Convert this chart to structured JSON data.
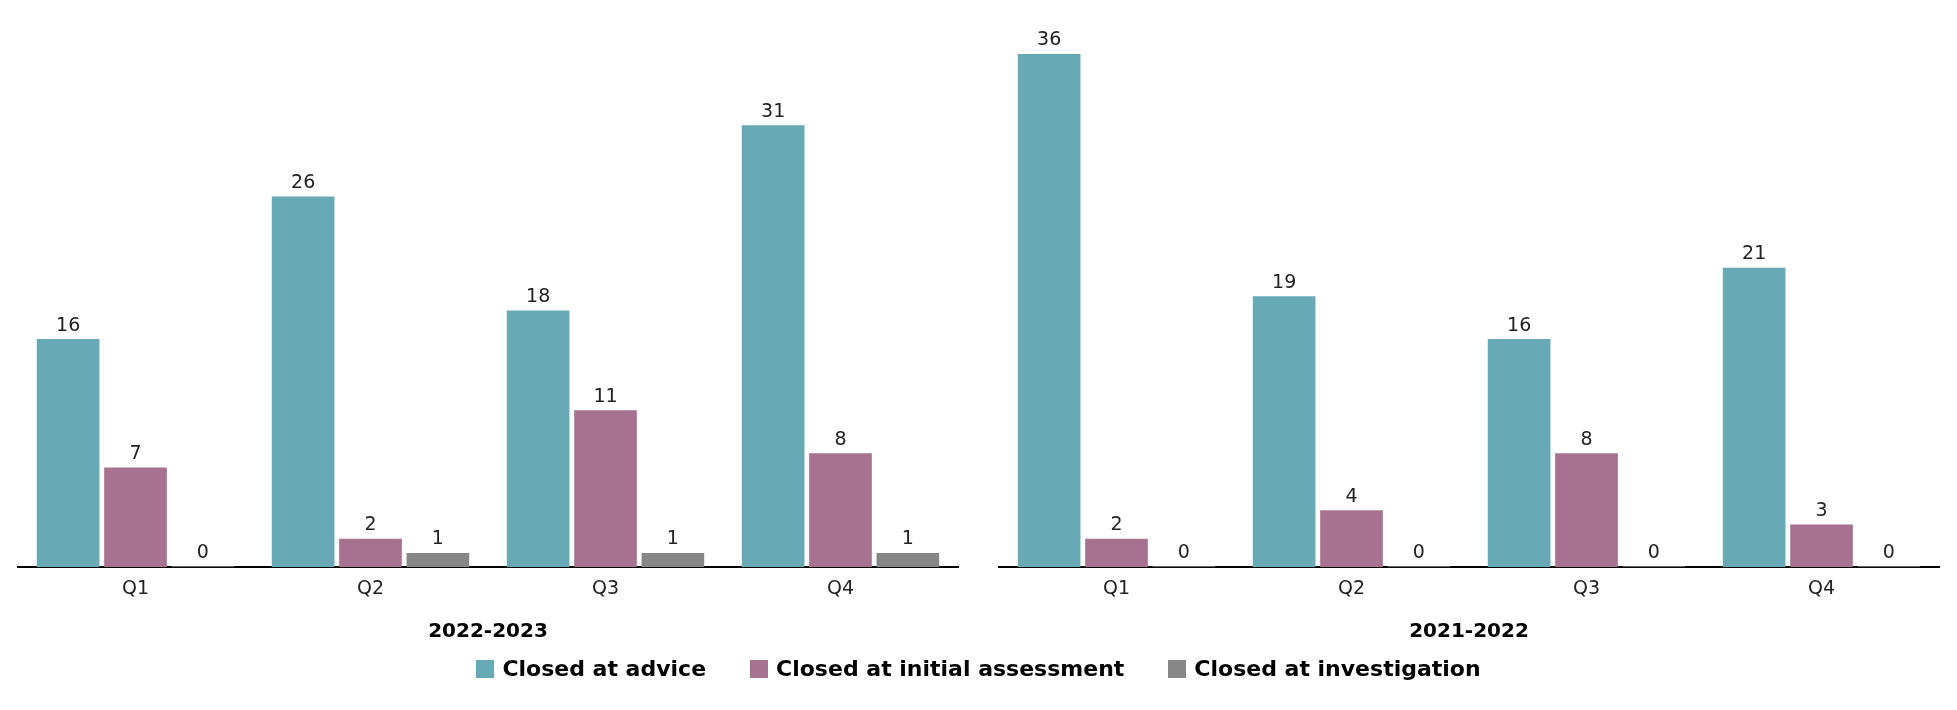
{
  "chart_data": [
    {
      "type": "bar",
      "xlabel": "2022-2023",
      "categories": [
        "Q1",
        "Q2",
        "Q3",
        "Q4"
      ],
      "series": [
        {
          "name": "Closed at advice",
          "color": "#67a9b4",
          "values": [
            16,
            26,
            18,
            31
          ]
        },
        {
          "name": "Closed at initial assessment",
          "color": "#a6728f",
          "values": [
            7,
            2,
            11,
            8
          ]
        },
        {
          "name": "Closed at investigation",
          "color": "#878787",
          "values": [
            0,
            1,
            1,
            1
          ]
        }
      ],
      "data_labels": true,
      "legend": "bottom",
      "grid": false,
      "tick_labels": "x"
    },
    {
      "type": "bar",
      "xlabel": "2021-2022",
      "categories": [
        "Q1",
        "Q2",
        "Q3",
        "Q4"
      ],
      "series": [
        {
          "color": "#67a9b4",
          "values": [
            36,
            19,
            16,
            21
          ]
        },
        {
          "color": "#a6728f",
          "values": [
            2,
            4,
            8,
            3
          ]
        },
        {
          "color": "#878787",
          "values": [
            0,
            0,
            0,
            0
          ]
        }
      ],
      "data_labels": true,
      "grid": false,
      "tick_labels": "x"
    }
  ]
}
